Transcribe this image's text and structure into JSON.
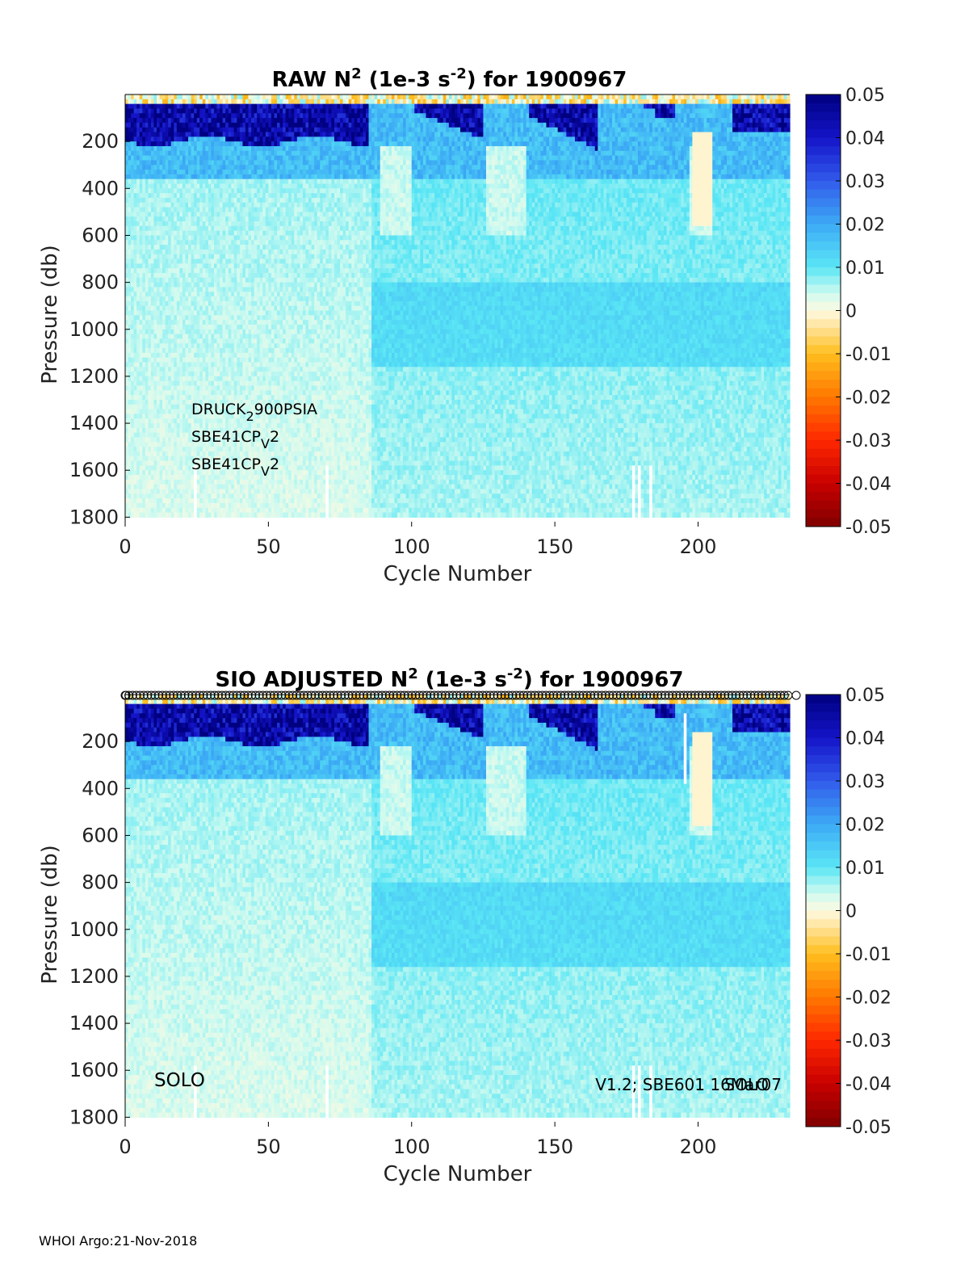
{
  "footer": "WHOI Argo:21-Nov-2018",
  "colors": {
    "positive_max": "#00007f",
    "zero": "#fff7d0",
    "negative_max": "#7f0000",
    "frame": "#000000"
  },
  "chart_data": [
    {
      "type": "heatmap",
      "title": {
        "prefix": "RAW N",
        "sup1": "2",
        "mid": " (1e-3 s",
        "sup2": "-2",
        "suffix": ") for 1900967"
      },
      "xlabel": "Cycle Number",
      "ylabel": "Pressure (db)",
      "xlim": [
        0,
        232
      ],
      "ylim": [
        1840,
        0
      ],
      "xticks": [
        "0",
        "50",
        "100",
        "150",
        "200"
      ],
      "yticks": [
        "200",
        "400",
        "600",
        "800",
        "1000",
        "1200",
        "1400",
        "1600",
        "1800"
      ],
      "colorbar": {
        "range": [
          -0.05,
          0.05
        ],
        "ticks": [
          "0.05",
          "0.04",
          "0.03",
          "0.02",
          "0.01",
          "0",
          "-0.01",
          "-0.02",
          "-0.03",
          "-0.04",
          "-0.05"
        ],
        "colormap": "blue-cyan-cream-yellow-red"
      },
      "annotations": [
        {
          "base": "DRUCK",
          "sub": "2",
          "rest": "900PSIA"
        },
        {
          "base": "SBE41CP",
          "sub": "V",
          "rest": "2"
        },
        {
          "base": "SBE41CP",
          "sub": "V",
          "rest": "2"
        }
      ],
      "gaps": [
        24,
        70,
        177,
        179,
        183
      ]
    },
    {
      "type": "heatmap",
      "title": {
        "prefix": "SIO  ADJUSTED N",
        "sup1": "2",
        "mid": " (1e-3 s",
        "sup2": "-2",
        "suffix": ") for 1900967"
      },
      "xlabel": "Cycle Number",
      "ylabel": "Pressure (db)",
      "xlim": [
        0,
        232
      ],
      "ylim": [
        1840,
        0
      ],
      "xticks": [
        "0",
        "50",
        "100",
        "150",
        "200"
      ],
      "yticks": [
        "200",
        "400",
        "600",
        "800",
        "1000",
        "1200",
        "1400",
        "1600",
        "1800"
      ],
      "colorbar": {
        "range": [
          -0.05,
          0.05
        ],
        "ticks": [
          "0.05",
          "0.04",
          "0.03",
          "0.02",
          "0.01",
          "0",
          "-0.01",
          "-0.02",
          "-0.03",
          "-0.04",
          "-0.05"
        ],
        "colormap": "blue-cyan-cream-yellow-red"
      },
      "annotations_left": "SOLO",
      "annotations_right": "V1.2; SBE601 16Mar07",
      "annotations_right_overlap": "SOLO",
      "top_markers": "circles at every cycle along the top edge",
      "gaps": [
        24,
        70,
        177,
        179,
        183
      ]
    }
  ]
}
